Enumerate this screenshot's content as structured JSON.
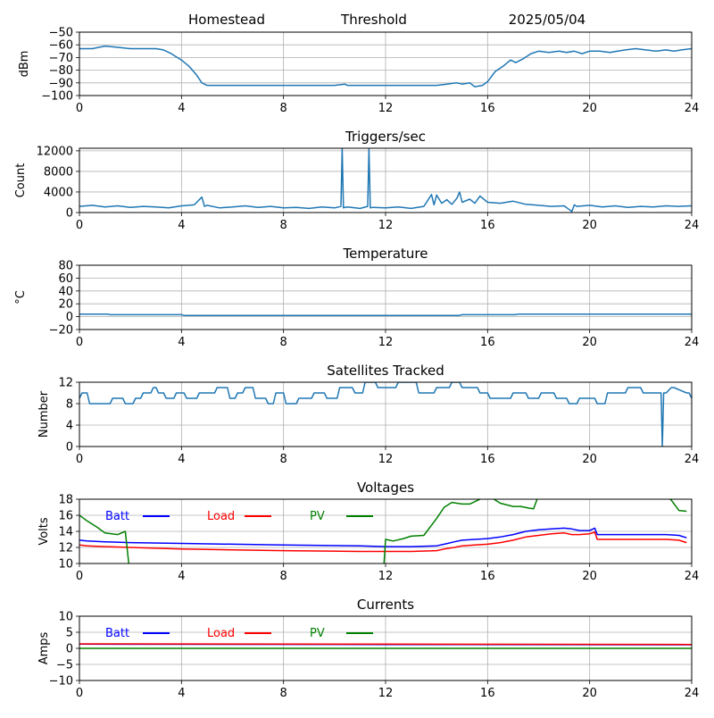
{
  "header": {
    "site": "Homestead",
    "threshold_label": "Threshold",
    "date": "2025/05/04"
  },
  "legend_labels": {
    "batt": "Batt",
    "load": "Load",
    "pv": "PV"
  },
  "colors": {
    "series_default": "#1f77b4",
    "batt": "#0000ff",
    "load": "#ff0000",
    "pv": "#008000",
    "grid": "#b0b0b0"
  },
  "chart_data": [
    {
      "id": "signal",
      "type": "line",
      "title": "",
      "xlabel": "",
      "ylabel": "dBm",
      "xlim": [
        0,
        24
      ],
      "ylim": [
        -100,
        -50
      ],
      "xticks": [
        0,
        4,
        8,
        12,
        16,
        20,
        24
      ],
      "yticks": [
        -100,
        -90,
        -80,
        -70,
        -60,
        -50
      ],
      "grid": true,
      "series": [
        {
          "color": "#1f77b4",
          "x": [
            0,
            0.5,
            1,
            1.5,
            2,
            2.5,
            3,
            3.3,
            3.6,
            4,
            4.3,
            4.6,
            4.8,
            5,
            6,
            7,
            8,
            9,
            10,
            10.4,
            10.5,
            11,
            12,
            13,
            14,
            14.4,
            14.8,
            15,
            15.3,
            15.5,
            15.8,
            16,
            16.3,
            16.6,
            16.9,
            17.1,
            17.4,
            17.7,
            18,
            18.4,
            18.8,
            19.1,
            19.4,
            19.7,
            20,
            20.4,
            20.8,
            21.1,
            21.4,
            21.8,
            22.2,
            22.6,
            23,
            23.3,
            23.6,
            24
          ],
          "values": [
            -63,
            -63,
            -61,
            -62,
            -63,
            -63,
            -63,
            -64,
            -67,
            -72,
            -77,
            -84,
            -90,
            -92,
            -92,
            -92,
            -92,
            -92,
            -92,
            -91,
            -92,
            -92,
            -92,
            -92,
            -92,
            -91,
            -90,
            -91,
            -90,
            -93,
            -92,
            -89,
            -81,
            -77,
            -72,
            -74,
            -71,
            -67,
            -65,
            -66,
            -65,
            -66,
            -65,
            -67,
            -65,
            -65,
            -66,
            -65,
            -64,
            -63,
            -64,
            -65,
            -64,
            -65,
            -64,
            -63
          ]
        }
      ]
    },
    {
      "id": "triggers",
      "type": "line",
      "title": "Triggers/sec",
      "xlabel": "",
      "ylabel": "Count",
      "xlim": [
        0,
        24
      ],
      "ylim": [
        0,
        12500
      ],
      "xticks": [
        0,
        4,
        8,
        12,
        16,
        20,
        24
      ],
      "yticks": [
        0,
        4000,
        8000,
        12000
      ],
      "grid": true,
      "series": [
        {
          "color": "#1f77b4",
          "x": [
            0,
            0.5,
            1,
            1.5,
            2,
            2.5,
            3,
            3.5,
            4,
            4.5,
            4.8,
            4.9,
            5,
            5.5,
            6,
            6.5,
            7,
            7.5,
            8,
            8.5,
            9,
            9.5,
            10,
            10.25,
            10.3,
            10.35,
            10.4,
            10.5,
            11,
            11.3,
            11.35,
            11.4,
            11.5,
            12,
            12.5,
            13,
            13.5,
            13.8,
            13.9,
            14,
            14.2,
            14.4,
            14.6,
            14.8,
            14.9,
            15,
            15.3,
            15.5,
            15.7,
            16,
            16.5,
            17,
            17.5,
            18,
            18.5,
            19,
            19.3,
            19.4,
            19.5,
            20,
            20.5,
            21,
            21.5,
            22,
            22.5,
            23,
            23.5,
            24
          ],
          "values": [
            1200,
            1400,
            1100,
            1300,
            1000,
            1200,
            1100,
            900,
            1300,
            1500,
            3000,
            1200,
            1400,
            900,
            1100,
            1300,
            1000,
            1200,
            900,
            1000,
            800,
            1100,
            900,
            1200,
            12500,
            900,
            1000,
            1100,
            800,
            1200,
            12500,
            900,
            1000,
            900,
            1100,
            800,
            1200,
            3500,
            1500,
            3400,
            1800,
            2500,
            1600,
            2800,
            4000,
            2000,
            2600,
            1800,
            3200,
            2000,
            1800,
            2200,
            1600,
            1400,
            1200,
            1300,
            200,
            1500,
            1200,
            1400,
            1100,
            1300,
            1000,
            1200,
            1100,
            1300,
            1200,
            1300
          ]
        }
      ]
    },
    {
      "id": "temperature",
      "type": "line",
      "title": "Temperature",
      "xlabel": "",
      "ylabel": "°C",
      "xlim": [
        0,
        24
      ],
      "ylim": [
        -20,
        80
      ],
      "xticks": [
        0,
        4,
        8,
        12,
        16,
        20,
        24
      ],
      "yticks": [
        -20,
        0,
        20,
        40,
        60,
        80
      ],
      "grid": true,
      "series": [
        {
          "color": "#1f77b4",
          "x": [
            0,
            1.1,
            1.2,
            4,
            4.1,
            14.9,
            15,
            17.1,
            17.2,
            24
          ],
          "values": [
            4,
            4,
            3,
            3,
            2,
            2,
            3,
            3,
            4,
            4
          ]
        }
      ]
    },
    {
      "id": "satellites",
      "type": "line",
      "title": "Satellites Tracked",
      "xlabel": "",
      "ylabel": "Number",
      "xlim": [
        0,
        24
      ],
      "ylim": [
        0,
        12
      ],
      "xticks": [
        0,
        4,
        8,
        12,
        16,
        20,
        24
      ],
      "yticks": [
        0,
        4,
        8,
        12
      ],
      "grid": true,
      "series": [
        {
          "color": "#1f77b4",
          "x": [
            0,
            0.1,
            0.3,
            0.4,
            1.2,
            1.3,
            1.7,
            1.8,
            2.1,
            2.2,
            2.4,
            2.5,
            2.8,
            2.9,
            3.0,
            3.1,
            3.3,
            3.4,
            3.7,
            3.8,
            4.1,
            4.2,
            4.6,
            4.7,
            5.3,
            5.4,
            5.8,
            5.9,
            6.1,
            6.2,
            6.4,
            6.5,
            6.8,
            6.9,
            7.3,
            7.4,
            7.6,
            7.7,
            8.0,
            8.1,
            8.5,
            8.6,
            9.1,
            9.2,
            9.6,
            9.7,
            10.1,
            10.2,
            10.7,
            10.8,
            11.1,
            11.2,
            11.6,
            11.7,
            12.4,
            12.5,
            13.2,
            13.3,
            13.9,
            14.0,
            14.5,
            14.6,
            14.9,
            15.0,
            15.6,
            15.7,
            16.0,
            16.1,
            16.9,
            17.0,
            17.5,
            17.6,
            18.0,
            18.1,
            18.6,
            18.7,
            19.1,
            19.2,
            19.5,
            19.6,
            20.2,
            20.3,
            20.6,
            20.7,
            21.4,
            21.5,
            22.0,
            22.1,
            22.8,
            22.85,
            22.9,
            23.0,
            23.2,
            23.3,
            23.8,
            23.9,
            24
          ],
          "values": [
            9,
            10,
            10,
            8,
            8,
            9,
            9,
            8,
            8,
            9,
            9,
            10,
            10,
            11,
            11,
            10,
            10,
            9,
            9,
            10,
            10,
            9,
            9,
            10,
            10,
            11,
            11,
            9,
            9,
            10,
            10,
            11,
            11,
            9,
            9,
            8,
            8,
            10,
            10,
            8,
            8,
            9,
            9,
            10,
            10,
            9,
            9,
            11,
            11,
            10,
            10,
            12,
            12,
            11,
            11,
            12,
            12,
            10,
            10,
            11,
            11,
            12,
            12,
            11,
            11,
            10,
            10,
            9,
            9,
            10,
            10,
            9,
            9,
            10,
            10,
            9,
            9,
            8,
            8,
            9,
            9,
            8,
            8,
            10,
            10,
            11,
            11,
            10,
            10,
            0,
            10,
            10,
            11,
            11,
            10,
            10,
            9
          ]
        }
      ]
    },
    {
      "id": "voltages",
      "type": "line",
      "title": "Voltages",
      "xlabel": "",
      "ylabel": "Volts",
      "xlim": [
        0,
        24
      ],
      "ylim": [
        10,
        18
      ],
      "xticks": [
        0,
        4,
        8,
        12,
        16,
        20,
        24
      ],
      "yticks": [
        10,
        12,
        14,
        16,
        18
      ],
      "grid": true,
      "series": [
        {
          "name": "Batt",
          "color": "#0000ff",
          "x": [
            0,
            0.3,
            1,
            2,
            4,
            8,
            11,
            12,
            13,
            14,
            14.3,
            14.7,
            15,
            15.5,
            16,
            16.5,
            17,
            17.5,
            18,
            18.5,
            19,
            19.3,
            19.6,
            20,
            20.2,
            20.3,
            23,
            23.5,
            23.8
          ],
          "values": [
            12.9,
            12.8,
            12.7,
            12.6,
            12.5,
            12.3,
            12.2,
            12.1,
            12.1,
            12.2,
            12.4,
            12.7,
            12.9,
            13.0,
            13.1,
            13.3,
            13.6,
            14.0,
            14.2,
            14.3,
            14.4,
            14.3,
            14.1,
            14.1,
            14.4,
            13.6,
            13.6,
            13.5,
            13.2
          ]
        },
        {
          "name": "Load",
          "color": "#ff0000",
          "x": [
            0,
            0.3,
            1,
            2,
            4,
            8,
            11,
            12,
            13,
            14,
            14.3,
            14.7,
            15,
            15.5,
            16,
            16.5,
            17,
            17.5,
            18,
            18.5,
            19,
            19.3,
            19.6,
            20,
            20.2,
            20.3,
            23,
            23.5,
            23.8
          ],
          "values": [
            12.3,
            12.2,
            12.1,
            12.0,
            11.8,
            11.6,
            11.5,
            11.5,
            11.5,
            11.6,
            11.8,
            12.0,
            12.2,
            12.3,
            12.4,
            12.6,
            12.9,
            13.3,
            13.5,
            13.7,
            13.8,
            13.6,
            13.6,
            13.7,
            13.9,
            13.0,
            13.0,
            12.9,
            12.6
          ]
        },
        {
          "name": "PV",
          "color": "#008000",
          "x": [
            0,
            0.3,
            0.7,
            1.0,
            1.5,
            1.8,
            2.0,
            11.9,
            12.0,
            12.3,
            12.7,
            13.0,
            13.5,
            14.0,
            14.3,
            14.6,
            15.0,
            15.3,
            15.7,
            16.0,
            16.5,
            17.0,
            17.3,
            17.6,
            17.8,
            18.0,
            22.9,
            23.2,
            23.5,
            23.8
          ],
          "values": [
            16.0,
            15.3,
            14.5,
            13.8,
            13.6,
            14.0,
            8.0,
            8.0,
            13.0,
            12.8,
            13.1,
            13.4,
            13.5,
            15.6,
            17.0,
            17.6,
            17.4,
            17.4,
            18.0,
            18.5,
            17.5,
            17.1,
            17.1,
            16.9,
            16.8,
            18.5,
            18.5,
            17.9,
            16.6,
            16.5
          ]
        }
      ]
    },
    {
      "id": "currents",
      "type": "line",
      "title": "Currents",
      "xlabel": "",
      "ylabel": "Amps",
      "xlim": [
        0,
        24
      ],
      "ylim": [
        -10,
        10
      ],
      "xticks": [
        0,
        4,
        8,
        12,
        16,
        20,
        24
      ],
      "yticks": [
        -10,
        -5,
        0,
        5,
        10
      ],
      "grid": true,
      "series": [
        {
          "name": "Batt",
          "color": "#0000ff",
          "x": [
            0,
            12,
            24
          ],
          "values": [
            1.3,
            1.2,
            1.1
          ]
        },
        {
          "name": "Load",
          "color": "#ff0000",
          "x": [
            0,
            12,
            24
          ],
          "values": [
            1.4,
            1.3,
            1.2
          ]
        },
        {
          "name": "PV",
          "color": "#008000",
          "x": [
            0,
            12,
            24
          ],
          "values": [
            0,
            0,
            0
          ]
        }
      ]
    }
  ]
}
